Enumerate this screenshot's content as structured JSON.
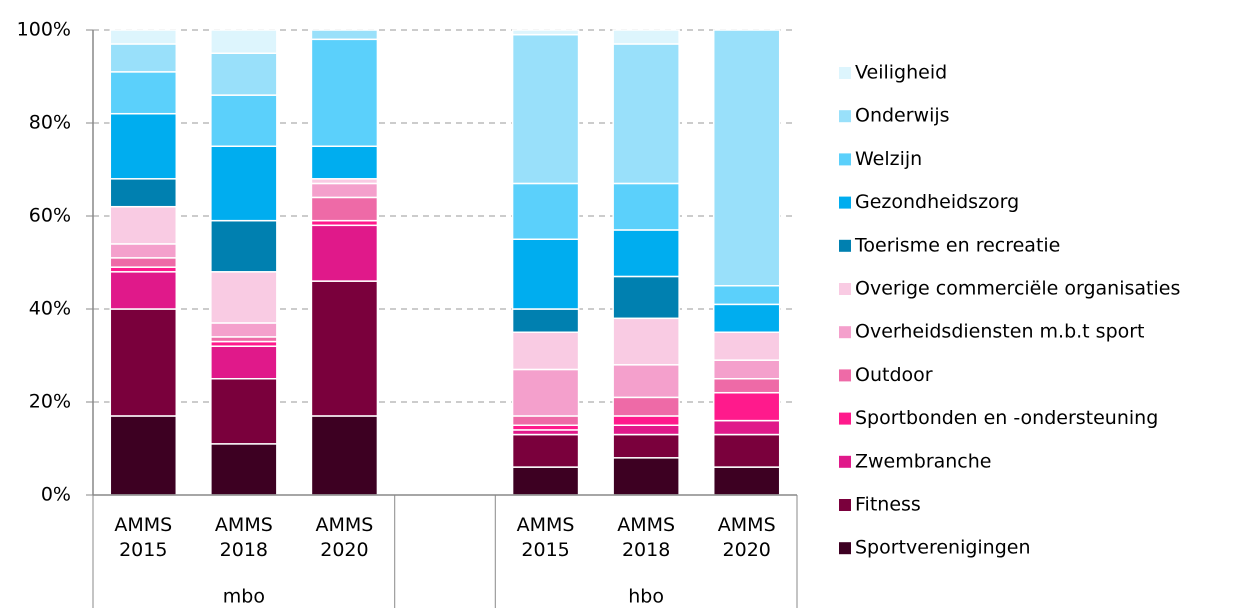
{
  "chart_data": {
    "type": "stacked_bar",
    "groups": [
      {
        "name": "mbo",
        "categories": [
          "AMMS 2015",
          "AMMS 2018",
          "AMMS 2020"
        ]
      },
      {
        "name": "hbo",
        "categories": [
          "AMMS 2015",
          "AMMS 2018",
          "AMMS 2020"
        ]
      }
    ],
    "series": [
      {
        "name": "Sportverenigingen",
        "color": "#3d0022",
        "values": [
          17,
          11,
          17,
          6,
          8,
          6
        ]
      },
      {
        "name": "Fitness",
        "color": "#7a003c",
        "values": [
          23,
          14,
          29,
          7,
          5,
          7
        ]
      },
      {
        "name": "Zwembranche",
        "color": "#e0198a",
        "values": [
          8,
          7,
          12,
          1,
          2,
          3
        ]
      },
      {
        "name": "Sportbonden en -ondersteuning",
        "color": "#ff1a8c",
        "values": [
          1,
          1,
          1,
          1,
          2,
          6
        ]
      },
      {
        "name": "Outdoor",
        "color": "#ee6aa7",
        "values": [
          2,
          1,
          5,
          2,
          4,
          3
        ]
      },
      {
        "name": "Overheidsdiensten m.b.t sport",
        "color": "#f4a0cc",
        "values": [
          3,
          3,
          3,
          10,
          7,
          4
        ]
      },
      {
        "name": "Overige commerciële organisaties",
        "color": "#f9cbe3",
        "values": [
          8,
          11,
          1,
          8,
          10,
          6
        ]
      },
      {
        "name": "Toerisme en recreatie",
        "color": "#0080b0",
        "values": [
          6,
          11,
          0,
          5,
          9,
          0
        ]
      },
      {
        "name": "Gezondheidszorg",
        "color": "#00adef",
        "values": [
          14,
          16,
          7,
          15,
          10,
          6
        ]
      },
      {
        "name": "Welzijn",
        "color": "#5bd0fb",
        "values": [
          9,
          11,
          23,
          12,
          10,
          4
        ]
      },
      {
        "name": "Onderwijs",
        "color": "#99e0fa",
        "values": [
          6,
          9,
          2,
          32,
          30,
          55
        ]
      },
      {
        "name": "Veiligheid",
        "color": "#ddf5fd",
        "values": [
          3,
          5,
          0,
          1,
          3,
          0
        ]
      }
    ],
    "ylim": [
      0,
      100
    ],
    "yticks": [
      {
        "value": 0,
        "label": "0%"
      },
      {
        "value": 20,
        "label": "20%"
      },
      {
        "value": 40,
        "label": "40%"
      },
      {
        "value": 60,
        "label": "60%"
      },
      {
        "value": 80,
        "label": "80%"
      },
      {
        "value": 100,
        "label": "100%"
      }
    ],
    "grid": true,
    "legend": "right"
  }
}
